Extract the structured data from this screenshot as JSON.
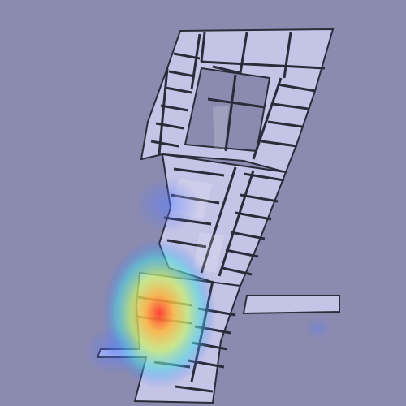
{
  "map": {
    "kind": "floorplan-heatmap",
    "colors": {
      "background": "#8b8bb0",
      "floor": "#c4c4e6",
      "wall": "#2b2b3a",
      "void": "#8b8bb0",
      "heat_low": "#3e6cff",
      "heat_mid": "#7ef0a8",
      "heat_high": "#ff4a3a"
    },
    "heat": {
      "peak_intensity": 1.0,
      "secondary_intensity": 0.35
    }
  }
}
